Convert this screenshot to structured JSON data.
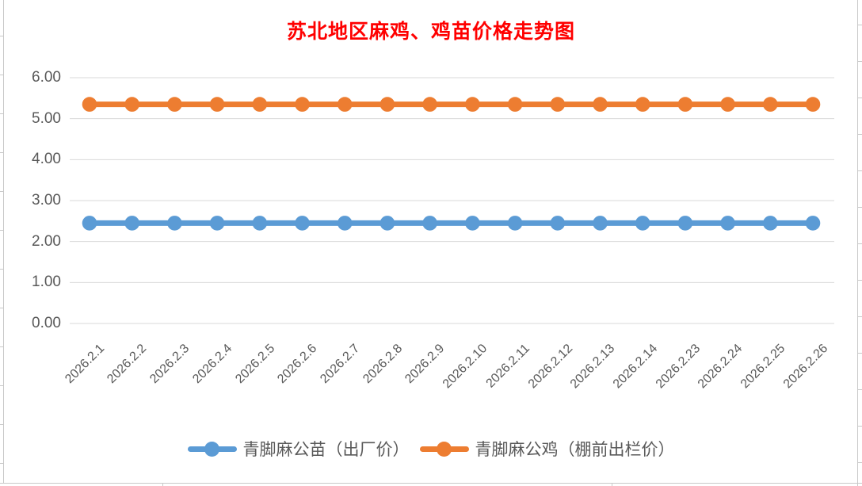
{
  "title": "苏北地区麻鸡、鸡苗价格走势图",
  "title_color": "#FF0000",
  "colors": {
    "chick_series": "#5B9BD5",
    "rooster_series": "#ED7D31",
    "gridline": "#D9D9D9",
    "axis_text": "#595959"
  },
  "legend": [
    {
      "label": "青脚麻公苗（出厂价）",
      "color": "#5B9BD5"
    },
    {
      "label": "青脚麻公鸡（棚前出栏价）",
      "color": "#ED7D31"
    }
  ],
  "chart_data": {
    "type": "line",
    "title": "苏北地区麻鸡、鸡苗价格走势图",
    "categories": [
      "2026.2.1",
      "2026.2.2",
      "2026.2.3",
      "2026.2.4",
      "2026.2.5",
      "2026.2.6",
      "2026.2.7",
      "2026.2.8",
      "2026.2.9",
      "2026.2.10",
      "2026.2.11",
      "2026.2.12",
      "2026.2.13",
      "2026.2.14",
      "2026.2.23",
      "2026.2.24",
      "2026.2.25",
      "2026.2.26"
    ],
    "series": [
      {
        "name": "青脚麻公苗（出厂价）",
        "color": "#5B9BD5",
        "values": [
          2.45,
          2.45,
          2.45,
          2.45,
          2.45,
          2.45,
          2.45,
          2.45,
          2.45,
          2.45,
          2.45,
          2.45,
          2.45,
          2.45,
          2.45,
          2.45,
          2.45,
          2.45
        ]
      },
      {
        "name": "青脚麻公鸡（棚前出栏价）",
        "color": "#ED7D31",
        "values": [
          5.35,
          5.35,
          5.35,
          5.35,
          5.35,
          5.35,
          5.35,
          5.35,
          5.35,
          5.35,
          5.35,
          5.35,
          5.35,
          5.35,
          5.35,
          5.35,
          5.35,
          5.35
        ]
      }
    ],
    "ylim": [
      0,
      6
    ],
    "yticks": [
      "0.00",
      "1.00",
      "2.00",
      "3.00",
      "4.00",
      "5.00",
      "6.00"
    ],
    "grid": true,
    "legend_position": "bottom"
  }
}
